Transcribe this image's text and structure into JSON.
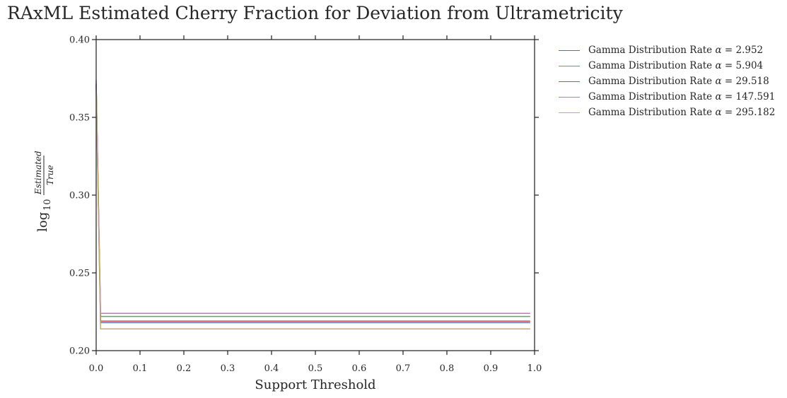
{
  "chart_data": {
    "type": "line",
    "title": "RAxML Estimated Cherry Fraction for Deviation from Ultrametricity",
    "xlabel": "Support Threshold",
    "ylabel": "log10(Estimated/True)",
    "ylabel_parts": {
      "log": "log",
      "base": "10",
      "numerator": "Estimated",
      "denominator": "True"
    },
    "xlim": [
      0.0,
      1.0
    ],
    "ylim": [
      0.2,
      0.4
    ],
    "x_ticks": [
      0.0,
      0.1,
      0.2,
      0.3,
      0.4,
      0.5,
      0.6,
      0.7,
      0.8,
      0.9,
      1.0
    ],
    "x_tick_labels": [
      "0.0",
      "0.1",
      "0.2",
      "0.3",
      "0.4",
      "0.5",
      "0.6",
      "0.7",
      "0.8",
      "0.9",
      "1.0"
    ],
    "y_ticks": [
      0.2,
      0.25,
      0.3,
      0.35,
      0.4
    ],
    "y_tick_labels": [
      "0.20",
      "0.25",
      "0.30",
      "0.35",
      "0.40"
    ],
    "legend_position": "outside-top-right",
    "grid": false,
    "x": [
      0.0,
      0.01,
      0.99
    ],
    "series": [
      {
        "name": "Gamma Distribution Rate α = 2.952",
        "prefix": "Gamma Distribution Rate ",
        "alpha": "2.952",
        "color": "#4c72b0",
        "values": [
          0.372,
          0.218,
          0.218
        ]
      },
      {
        "name": "Gamma Distribution Rate α = 5.904",
        "prefix": "Gamma Distribution Rate ",
        "alpha": "5.904",
        "color": "#55a868",
        "values": [
          0.37,
          0.222,
          0.222
        ]
      },
      {
        "name": "Gamma Distribution Rate α = 29.518",
        "prefix": "Gamma Distribution Rate ",
        "alpha": "29.518",
        "color": "#c44e52",
        "values": [
          0.371,
          0.219,
          0.219
        ]
      },
      {
        "name": "Gamma Distribution Rate α = 147.591",
        "prefix": "Gamma Distribution Rate ",
        "alpha": "147.591",
        "color": "#b47cc7",
        "values": [
          0.374,
          0.224,
          0.224
        ]
      },
      {
        "name": "Gamma Distribution Rate α = 295.182",
        "prefix": "Gamma Distribution Rate ",
        "alpha": "295.182",
        "color": "#c4ad66",
        "values": [
          0.366,
          0.214,
          0.214
        ]
      }
    ]
  }
}
